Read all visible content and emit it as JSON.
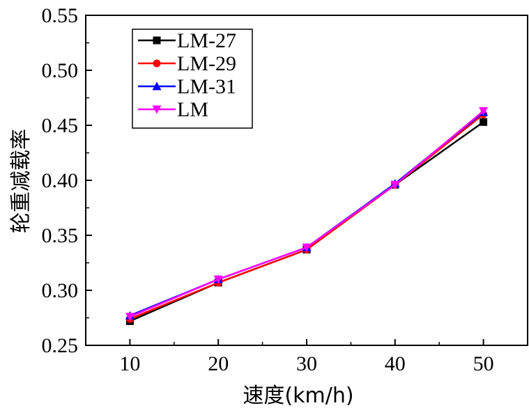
{
  "chart_data": {
    "type": "line",
    "xlabel": "速度(km/h)",
    "ylabel": "轮重减载率",
    "xlim": [
      5,
      55
    ],
    "ylim": [
      0.25,
      0.55
    ],
    "x_ticks": [
      "10",
      "20",
      "30",
      "40",
      "50"
    ],
    "y_ticks": [
      "0.25",
      "0.30",
      "0.35",
      "0.40",
      "0.45",
      "0.50",
      "0.55"
    ],
    "grid": false,
    "legend_position": "top-left",
    "x": [
      10,
      20,
      30,
      40,
      50
    ],
    "series": [
      {
        "name": "LM-27",
        "color": "#000000",
        "marker": "square",
        "values": [
          0.272,
          0.307,
          0.337,
          0.396,
          0.453
        ]
      },
      {
        "name": "LM-29",
        "color": "#ff0000",
        "marker": "circle",
        "values": [
          0.274,
          0.307,
          0.337,
          0.396,
          0.46
        ]
      },
      {
        "name": "LM-31",
        "color": "#0000ff",
        "marker": "triangle-up",
        "values": [
          0.277,
          0.31,
          0.339,
          0.397,
          0.462
        ]
      },
      {
        "name": "LM",
        "color": "#ff00ff",
        "marker": "triangle-down",
        "values": [
          0.276,
          0.31,
          0.339,
          0.396,
          0.463
        ]
      }
    ]
  }
}
